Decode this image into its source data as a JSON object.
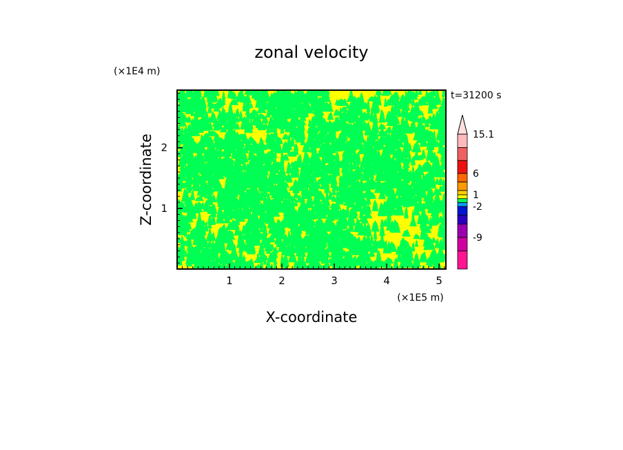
{
  "chart_data": {
    "type": "heatmap",
    "title": "zonal velocity",
    "xlabel": "X-coordinate",
    "ylabel": "Z-coordinate",
    "x_units": "(×1E5 m)",
    "y_units": "(×1E4 m)",
    "time_label": "t=31200 s",
    "xlim": [
      0,
      5.13
    ],
    "ylim": [
      0,
      2.95
    ],
    "x_ticks": [
      "1",
      "2",
      "3",
      "4",
      "5"
    ],
    "y_ticks": [
      "1",
      "2"
    ],
    "field_description": "Mostly yellow (0 to 1) and green (-1 to 0) interleaved small-scale patches; green bands concentrated near z=1.0-1.8 and large yellow region near x=4-5, z=0.5-1.2.",
    "dominant_levels": [
      {
        "range": "0 to 1",
        "color": "#ffff00"
      },
      {
        "range": "-1 to 0",
        "color": "#00ff55"
      }
    ],
    "colorbar": {
      "labels": [
        "15.1",
        "6",
        "1",
        "-2",
        "-9"
      ],
      "extend_top": true,
      "segments": [
        {
          "color": "#ff1493",
          "from": -16,
          "to": -12
        },
        {
          "color": "#d000a0",
          "from": -12,
          "to": -9
        },
        {
          "color": "#9a00b0",
          "from": -9,
          "to": -6
        },
        {
          "color": "#2a00c0",
          "from": -6,
          "to": -4
        },
        {
          "color": "#0015d0",
          "from": -4,
          "to": -2
        },
        {
          "color": "#00a0ff",
          "from": -2,
          "to": -1
        },
        {
          "color": "#00ff55",
          "from": -1,
          "to": 0
        },
        {
          "color": "#ffff00",
          "from": 0,
          "to": 1
        },
        {
          "color": "#ffd000",
          "from": 1,
          "to": 2
        },
        {
          "color": "#ff9900",
          "from": 2,
          "to": 4
        },
        {
          "color": "#ff6600",
          "from": 4,
          "to": 6
        },
        {
          "color": "#ee1111",
          "from": 6,
          "to": 9
        },
        {
          "color": "#f06060",
          "from": 9,
          "to": 12
        },
        {
          "color": "#ffbbbb",
          "from": 12,
          "to": 15.1
        }
      ]
    }
  }
}
